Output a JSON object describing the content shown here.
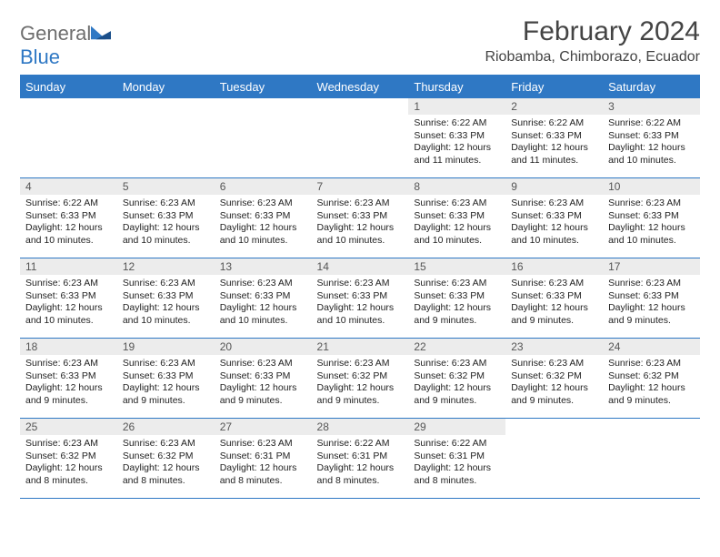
{
  "brand": {
    "name1": "General",
    "name2": "Blue"
  },
  "title": "February 2024",
  "location": "Riobamba, Chimborazo, Ecuador",
  "colors": {
    "accent": "#2f78c4",
    "header_text": "#ffffff",
    "daynum_bg": "#ececec",
    "border": "#2f78c4"
  },
  "weekdays": [
    "Sunday",
    "Monday",
    "Tuesday",
    "Wednesday",
    "Thursday",
    "Friday",
    "Saturday"
  ],
  "weeks": [
    [
      {
        "n": "",
        "sunrise": "",
        "sunset": "",
        "daylight1": "",
        "daylight2": ""
      },
      {
        "n": "",
        "sunrise": "",
        "sunset": "",
        "daylight1": "",
        "daylight2": ""
      },
      {
        "n": "",
        "sunrise": "",
        "sunset": "",
        "daylight1": "",
        "daylight2": ""
      },
      {
        "n": "",
        "sunrise": "",
        "sunset": "",
        "daylight1": "",
        "daylight2": ""
      },
      {
        "n": "1",
        "sunrise": "Sunrise: 6:22 AM",
        "sunset": "Sunset: 6:33 PM",
        "daylight1": "Daylight: 12 hours",
        "daylight2": "and 11 minutes."
      },
      {
        "n": "2",
        "sunrise": "Sunrise: 6:22 AM",
        "sunset": "Sunset: 6:33 PM",
        "daylight1": "Daylight: 12 hours",
        "daylight2": "and 11 minutes."
      },
      {
        "n": "3",
        "sunrise": "Sunrise: 6:22 AM",
        "sunset": "Sunset: 6:33 PM",
        "daylight1": "Daylight: 12 hours",
        "daylight2": "and 10 minutes."
      }
    ],
    [
      {
        "n": "4",
        "sunrise": "Sunrise: 6:22 AM",
        "sunset": "Sunset: 6:33 PM",
        "daylight1": "Daylight: 12 hours",
        "daylight2": "and 10 minutes."
      },
      {
        "n": "5",
        "sunrise": "Sunrise: 6:23 AM",
        "sunset": "Sunset: 6:33 PM",
        "daylight1": "Daylight: 12 hours",
        "daylight2": "and 10 minutes."
      },
      {
        "n": "6",
        "sunrise": "Sunrise: 6:23 AM",
        "sunset": "Sunset: 6:33 PM",
        "daylight1": "Daylight: 12 hours",
        "daylight2": "and 10 minutes."
      },
      {
        "n": "7",
        "sunrise": "Sunrise: 6:23 AM",
        "sunset": "Sunset: 6:33 PM",
        "daylight1": "Daylight: 12 hours",
        "daylight2": "and 10 minutes."
      },
      {
        "n": "8",
        "sunrise": "Sunrise: 6:23 AM",
        "sunset": "Sunset: 6:33 PM",
        "daylight1": "Daylight: 12 hours",
        "daylight2": "and 10 minutes."
      },
      {
        "n": "9",
        "sunrise": "Sunrise: 6:23 AM",
        "sunset": "Sunset: 6:33 PM",
        "daylight1": "Daylight: 12 hours",
        "daylight2": "and 10 minutes."
      },
      {
        "n": "10",
        "sunrise": "Sunrise: 6:23 AM",
        "sunset": "Sunset: 6:33 PM",
        "daylight1": "Daylight: 12 hours",
        "daylight2": "and 10 minutes."
      }
    ],
    [
      {
        "n": "11",
        "sunrise": "Sunrise: 6:23 AM",
        "sunset": "Sunset: 6:33 PM",
        "daylight1": "Daylight: 12 hours",
        "daylight2": "and 10 minutes."
      },
      {
        "n": "12",
        "sunrise": "Sunrise: 6:23 AM",
        "sunset": "Sunset: 6:33 PM",
        "daylight1": "Daylight: 12 hours",
        "daylight2": "and 10 minutes."
      },
      {
        "n": "13",
        "sunrise": "Sunrise: 6:23 AM",
        "sunset": "Sunset: 6:33 PM",
        "daylight1": "Daylight: 12 hours",
        "daylight2": "and 10 minutes."
      },
      {
        "n": "14",
        "sunrise": "Sunrise: 6:23 AM",
        "sunset": "Sunset: 6:33 PM",
        "daylight1": "Daylight: 12 hours",
        "daylight2": "and 10 minutes."
      },
      {
        "n": "15",
        "sunrise": "Sunrise: 6:23 AM",
        "sunset": "Sunset: 6:33 PM",
        "daylight1": "Daylight: 12 hours",
        "daylight2": "and 9 minutes."
      },
      {
        "n": "16",
        "sunrise": "Sunrise: 6:23 AM",
        "sunset": "Sunset: 6:33 PM",
        "daylight1": "Daylight: 12 hours",
        "daylight2": "and 9 minutes."
      },
      {
        "n": "17",
        "sunrise": "Sunrise: 6:23 AM",
        "sunset": "Sunset: 6:33 PM",
        "daylight1": "Daylight: 12 hours",
        "daylight2": "and 9 minutes."
      }
    ],
    [
      {
        "n": "18",
        "sunrise": "Sunrise: 6:23 AM",
        "sunset": "Sunset: 6:33 PM",
        "daylight1": "Daylight: 12 hours",
        "daylight2": "and 9 minutes."
      },
      {
        "n": "19",
        "sunrise": "Sunrise: 6:23 AM",
        "sunset": "Sunset: 6:33 PM",
        "daylight1": "Daylight: 12 hours",
        "daylight2": "and 9 minutes."
      },
      {
        "n": "20",
        "sunrise": "Sunrise: 6:23 AM",
        "sunset": "Sunset: 6:33 PM",
        "daylight1": "Daylight: 12 hours",
        "daylight2": "and 9 minutes."
      },
      {
        "n": "21",
        "sunrise": "Sunrise: 6:23 AM",
        "sunset": "Sunset: 6:32 PM",
        "daylight1": "Daylight: 12 hours",
        "daylight2": "and 9 minutes."
      },
      {
        "n": "22",
        "sunrise": "Sunrise: 6:23 AM",
        "sunset": "Sunset: 6:32 PM",
        "daylight1": "Daylight: 12 hours",
        "daylight2": "and 9 minutes."
      },
      {
        "n": "23",
        "sunrise": "Sunrise: 6:23 AM",
        "sunset": "Sunset: 6:32 PM",
        "daylight1": "Daylight: 12 hours",
        "daylight2": "and 9 minutes."
      },
      {
        "n": "24",
        "sunrise": "Sunrise: 6:23 AM",
        "sunset": "Sunset: 6:32 PM",
        "daylight1": "Daylight: 12 hours",
        "daylight2": "and 9 minutes."
      }
    ],
    [
      {
        "n": "25",
        "sunrise": "Sunrise: 6:23 AM",
        "sunset": "Sunset: 6:32 PM",
        "daylight1": "Daylight: 12 hours",
        "daylight2": "and 8 minutes."
      },
      {
        "n": "26",
        "sunrise": "Sunrise: 6:23 AM",
        "sunset": "Sunset: 6:32 PM",
        "daylight1": "Daylight: 12 hours",
        "daylight2": "and 8 minutes."
      },
      {
        "n": "27",
        "sunrise": "Sunrise: 6:23 AM",
        "sunset": "Sunset: 6:31 PM",
        "daylight1": "Daylight: 12 hours",
        "daylight2": "and 8 minutes."
      },
      {
        "n": "28",
        "sunrise": "Sunrise: 6:22 AM",
        "sunset": "Sunset: 6:31 PM",
        "daylight1": "Daylight: 12 hours",
        "daylight2": "and 8 minutes."
      },
      {
        "n": "29",
        "sunrise": "Sunrise: 6:22 AM",
        "sunset": "Sunset: 6:31 PM",
        "daylight1": "Daylight: 12 hours",
        "daylight2": "and 8 minutes."
      },
      {
        "n": "",
        "sunrise": "",
        "sunset": "",
        "daylight1": "",
        "daylight2": ""
      },
      {
        "n": "",
        "sunrise": "",
        "sunset": "",
        "daylight1": "",
        "daylight2": ""
      }
    ]
  ]
}
